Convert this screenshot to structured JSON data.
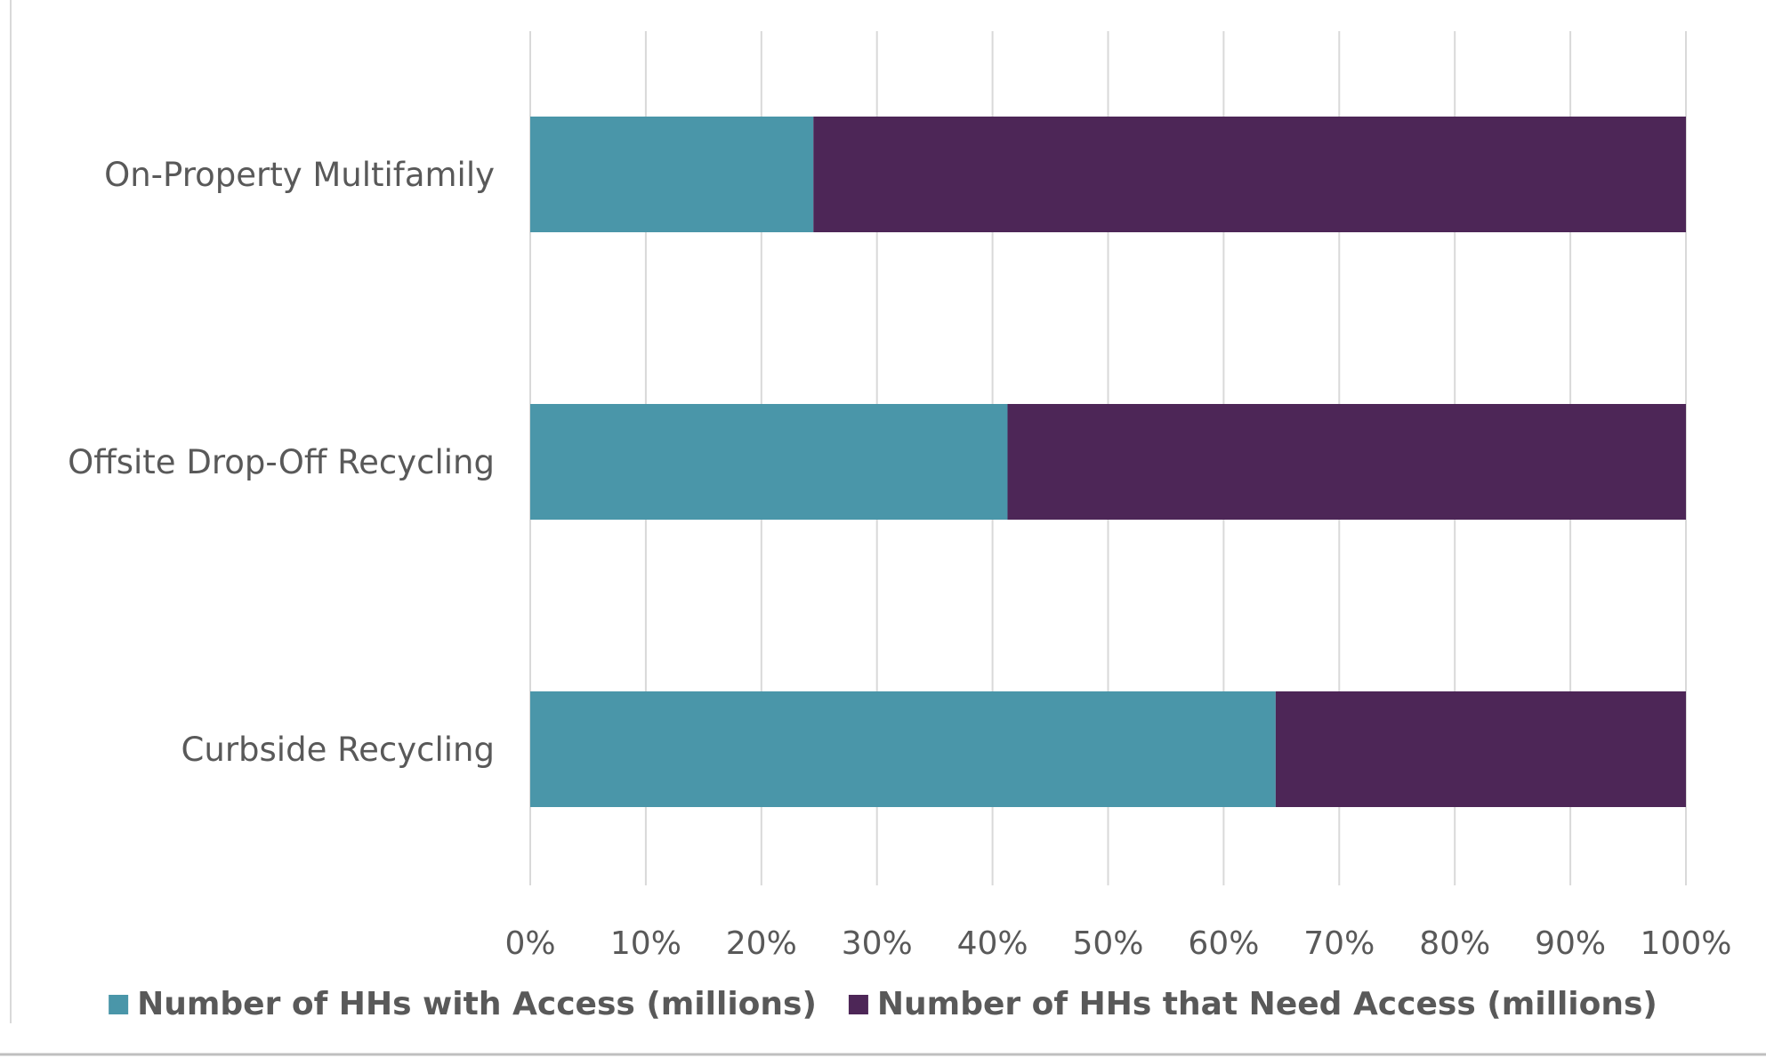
{
  "chart_data": {
    "type": "bar",
    "orientation": "horizontal",
    "stacked": "percent",
    "title": "",
    "xlabel": "",
    "ylabel": "",
    "categories": [
      "On-Property Multifamily",
      "Offsite Drop-Off Recycling",
      "Curbside Recycling"
    ],
    "series": [
      {
        "name": "Number of HHs with Access (millions)",
        "values": [
          24.5,
          41.3,
          64.5
        ],
        "color": "#4a96a9"
      },
      {
        "name": "Number of HHs that Need Access (millions)",
        "values": [
          75.5,
          58.7,
          35.5
        ],
        "color": "#4d2657"
      }
    ],
    "xlim": [
      0,
      100
    ],
    "x_ticks": [
      "0%",
      "10%",
      "20%",
      "30%",
      "40%",
      "50%",
      "60%",
      "70%",
      "80%",
      "90%",
      "100%"
    ],
    "grid": "vertical",
    "legend_position": "bottom",
    "colors": {
      "grid": "#d9d9d9",
      "text": "#595959"
    }
  }
}
